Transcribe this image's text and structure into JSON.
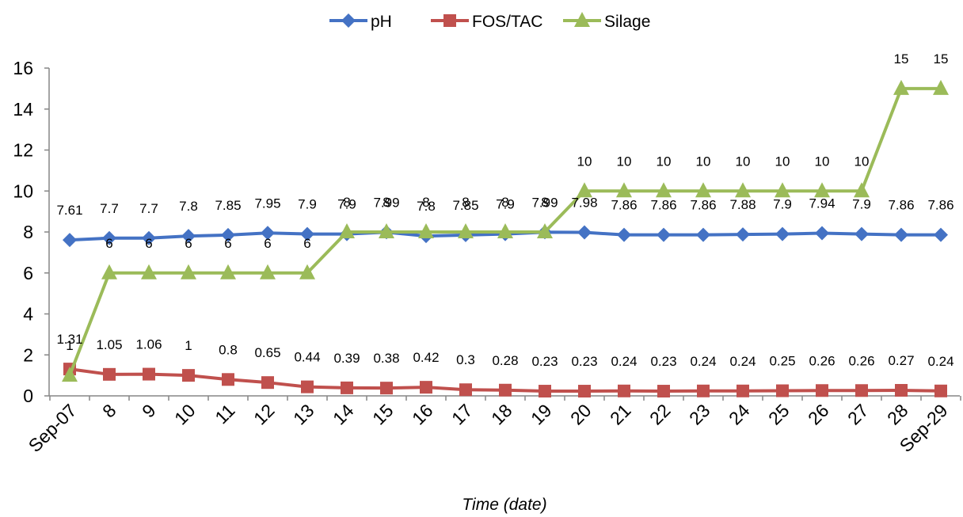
{
  "chart_data": {
    "type": "line",
    "title": "",
    "xlabel": "Time (date)",
    "ylabel": "",
    "ylim": [
      0,
      16
    ],
    "yticks": [
      "0",
      "2",
      "4",
      "6",
      "8",
      "10",
      "12",
      "14",
      "16"
    ],
    "categories": [
      "Sep-07",
      "8",
      "9",
      "10",
      "11",
      "12",
      "13",
      "14",
      "15",
      "16",
      "17",
      "18",
      "19",
      "20",
      "21",
      "22",
      "23",
      "24",
      "25",
      "26",
      "27",
      "28",
      "Sep-29"
    ],
    "grid": false,
    "legend_position": "top",
    "series": [
      {
        "name": "pH",
        "color": "#4472C4",
        "marker": "diamond",
        "values": [
          7.61,
          7.7,
          7.7,
          7.8,
          7.85,
          7.95,
          7.9,
          7.9,
          7.99,
          7.8,
          7.85,
          7.9,
          7.99,
          7.98,
          7.86,
          7.86,
          7.86,
          7.88,
          7.9,
          7.94,
          7.9,
          7.86,
          7.86
        ],
        "labels": [
          "7.61",
          "7.7",
          "7.7",
          "7.8",
          "7.85",
          "7.95",
          "7.9",
          "7.9",
          "7.99",
          "7.8",
          "7.85",
          "7.9",
          "7.99",
          "7.98",
          "7.86",
          "7.86",
          "7.86",
          "7.88",
          "7.9",
          "7.94",
          "7.9",
          "7.86",
          "7.86"
        ]
      },
      {
        "name": "FOS/TAC",
        "color": "#C0504D",
        "marker": "square",
        "values": [
          1.31,
          1.05,
          1.06,
          1,
          0.8,
          0.65,
          0.44,
          0.39,
          0.38,
          0.42,
          0.3,
          0.28,
          0.23,
          0.23,
          0.24,
          0.23,
          0.24,
          0.24,
          0.25,
          0.26,
          0.26,
          0.27,
          0.24
        ],
        "labels": [
          "1.31",
          "1.05",
          "1.06",
          "1",
          "0.8",
          "0.65",
          "0.44",
          "0.39",
          "0.38",
          "0.42",
          "0.3",
          "0.28",
          "0.23",
          "0.23",
          "0.24",
          "0.23",
          "0.24",
          "0.24",
          "0.25",
          "0.26",
          "0.26",
          "0.27",
          "0.24"
        ]
      },
      {
        "name": "Silage",
        "color": "#9BBB59",
        "marker": "triangle",
        "values": [
          1,
          6,
          6,
          6,
          6,
          6,
          6,
          8,
          8,
          8,
          8,
          8,
          8,
          10,
          10,
          10,
          10,
          10,
          10,
          10,
          10,
          15,
          15
        ],
        "labels": [
          "1",
          "6",
          "6",
          "6",
          "6",
          "6",
          "6",
          "8",
          "8",
          "8",
          "8",
          "8",
          "8",
          "10",
          "10",
          "10",
          "10",
          "10",
          "10",
          "10",
          "10",
          "15",
          "15"
        ]
      }
    ]
  }
}
